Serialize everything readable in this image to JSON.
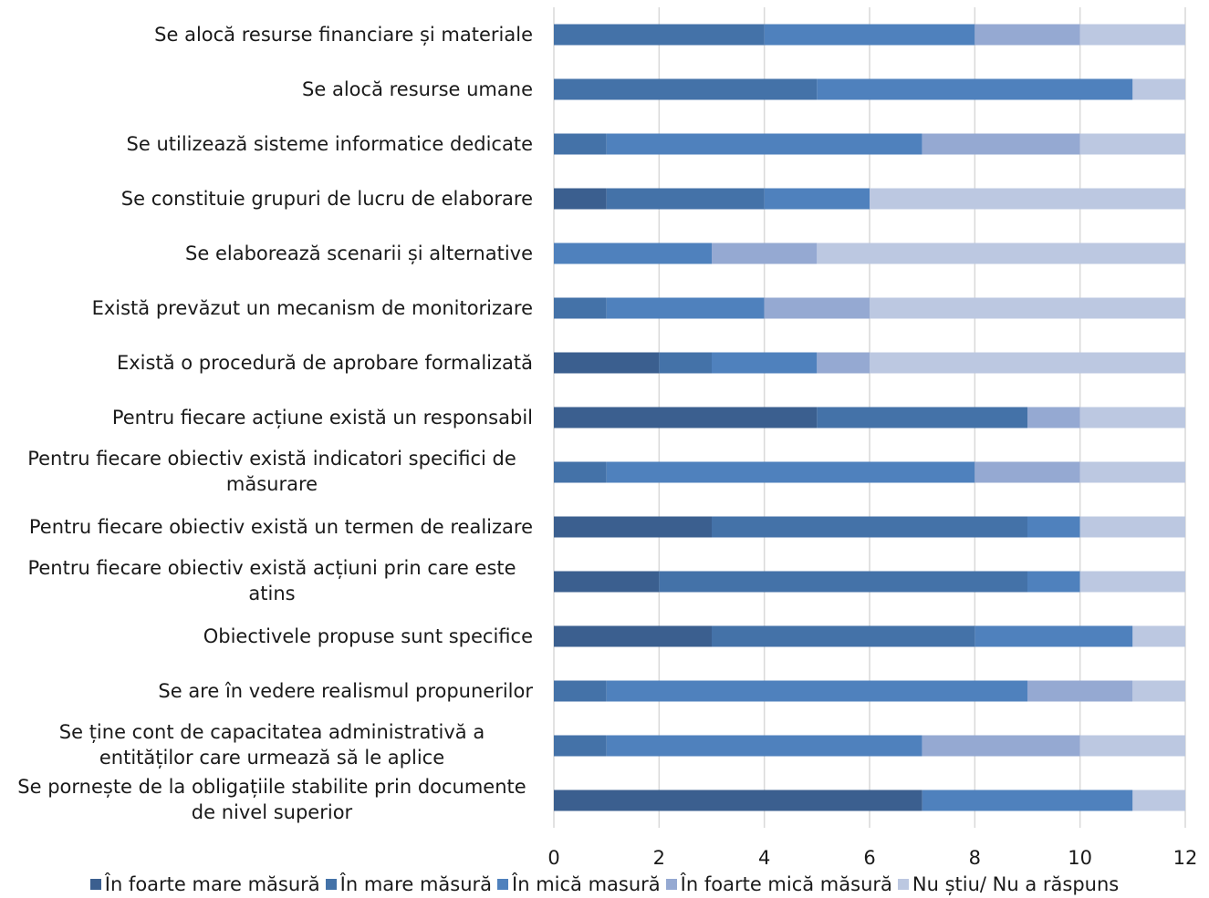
{
  "chart_data": {
    "type": "bar",
    "orientation": "horizontal",
    "stacked": true,
    "categories": [
      "Se alocă resurse financiare și materiale",
      "Se alocă resurse umane",
      "Se utilizează sisteme informatice dedicate",
      "Se constituie grupuri de lucru de elaborare",
      "Se elaborează scenarii și alternative",
      "Există prevăzut un mecanism de monitorizare",
      "Există o procedură de aprobare formalizată",
      "Pentru fiecare acțiune există un responsabil",
      "Pentru fiecare obiectiv există indicatori specifici de măsurare",
      "Pentru fiecare obiectiv există un termen de realizare",
      "Pentru fiecare obiectiv există acțiuni prin care este atins",
      "Obiectivele propuse sunt specifice",
      "Se are în vedere realismul propunerilor",
      "Se ține cont de capacitatea administrativă a entităților care urmează să le aplice",
      "Se pornește de la obligațiile stabilite prin documente de nivel superior"
    ],
    "category_lines": [
      [
        "Se alocă resurse financiare și materiale"
      ],
      [
        "Se alocă resurse umane"
      ],
      [
        "Se utilizează sisteme informatice dedicate"
      ],
      [
        "Se constituie grupuri de lucru de elaborare"
      ],
      [
        "Se elaborează scenarii și alternative"
      ],
      [
        "Există prevăzut un mecanism de monitorizare"
      ],
      [
        "Există o procedură de aprobare formalizată"
      ],
      [
        "Pentru fiecare acțiune există un responsabil"
      ],
      [
        "Pentru fiecare obiectiv există indicatori specifici de",
        "măsurare"
      ],
      [
        "Pentru fiecare obiectiv există un termen de realizare"
      ],
      [
        "Pentru fiecare obiectiv există acțiuni prin care este",
        "atins"
      ],
      [
        "Obiectivele propuse sunt specifice"
      ],
      [
        "Se are în vedere realismul propunerilor"
      ],
      [
        "Se ține cont de capacitatea administrativă a",
        "entităților care urmează să le aplice"
      ],
      [
        "Se pornește de la obligațiile stabilite prin documente",
        "de nivel superior"
      ]
    ],
    "series": [
      {
        "name": "În foarte mare măsură",
        "color": "#3b5f8f",
        "values": [
          0,
          0,
          0,
          1,
          0,
          0,
          2,
          5,
          0,
          3,
          2,
          3,
          0,
          0,
          7
        ]
      },
      {
        "name": "În mare măsură",
        "color": "#4472a8",
        "values": [
          4,
          5,
          1,
          3,
          0,
          1,
          1,
          4,
          1,
          6,
          7,
          5,
          1,
          1,
          0
        ]
      },
      {
        "name": "În mică masură",
        "color": "#4f81bd",
        "values": [
          4,
          6,
          6,
          2,
          3,
          3,
          2,
          0,
          7,
          1,
          1,
          3,
          8,
          6,
          4
        ]
      },
      {
        "name": "În foarte mică măsură",
        "color": "#95a9d2",
        "values": [
          2,
          0,
          3,
          0,
          2,
          2,
          1,
          1,
          2,
          0,
          0,
          0,
          2,
          3,
          0
        ]
      },
      {
        "name": "Nu știu/ Nu a răspuns",
        "color": "#bcc8e1",
        "values": [
          2,
          1,
          2,
          6,
          7,
          6,
          6,
          2,
          2,
          2,
          2,
          1,
          1,
          2,
          1
        ]
      }
    ],
    "xlim": [
      0,
      12
    ],
    "x_ticks": [
      0,
      2,
      4,
      6,
      8,
      10,
      12
    ],
    "grid": true,
    "legend_position": "bottom"
  }
}
